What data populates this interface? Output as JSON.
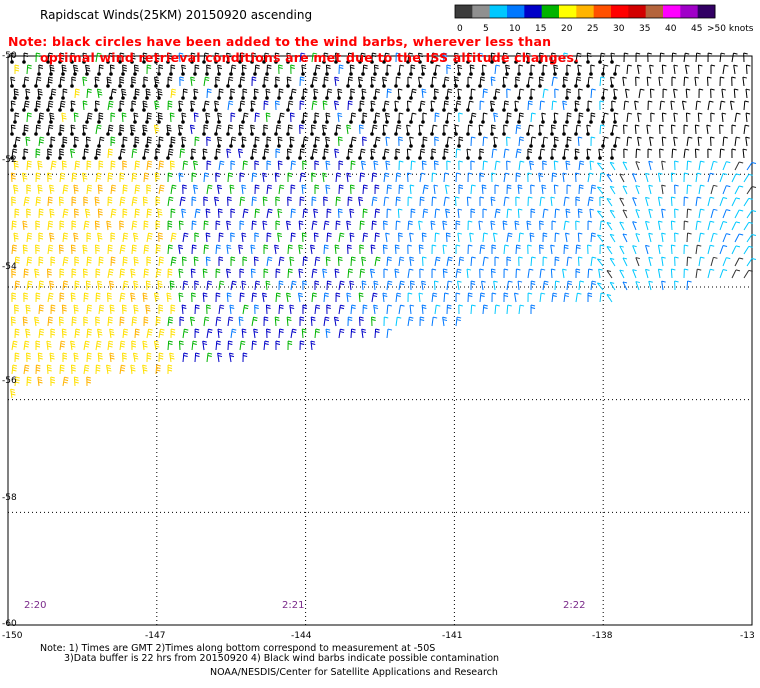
{
  "title": "Rapidscat Winds(25KM) 20150920 ascending",
  "note_line1": "Note: black circles have been added to the wind barbs, wherever less than",
  "note_line2": "optimal wind retrieval conditions are met due to the ISS altitude changes.",
  "colorbar": {
    "labels": [
      "0",
      "5",
      "10",
      "15",
      "20",
      "25",
      "30",
      "35",
      "40",
      "45",
      ">50 knots"
    ],
    "colors": [
      "#3c3c3c",
      "#909090",
      "#00c8ff",
      "#0078ff",
      "#0000c8",
      "#00b400",
      "#ffff00",
      "#ffb400",
      "#ff5000",
      "#ff0000",
      "#d20000",
      "#b4643c",
      "#ff00ff",
      "#a000c8",
      "#320064"
    ]
  },
  "map": {
    "lat_labels": [
      "-50",
      "-52",
      "-54",
      "-56",
      "-58",
      "-60"
    ],
    "lon_labels": [
      "-150",
      "-147",
      "-144",
      "-141",
      "-138",
      "-13"
    ],
    "time_labels": [
      "2:20",
      "2:21",
      "2:22"
    ],
    "lon_range": [
      -150,
      -135
    ],
    "lat_range": [
      -60,
      -49.9
    ],
    "gridlines": "dotted"
  },
  "footer": {
    "line1": "Note: 1) Times are GMT 2)Times along bottom correspond to measurement at -50S",
    "line2": "3)Data buffer is 22 hrs from 20150920 4) Black wind barbs indicate possible contamination",
    "line3": "NOAA/NESDIS/Center for Satellite Applications and Research"
  }
}
